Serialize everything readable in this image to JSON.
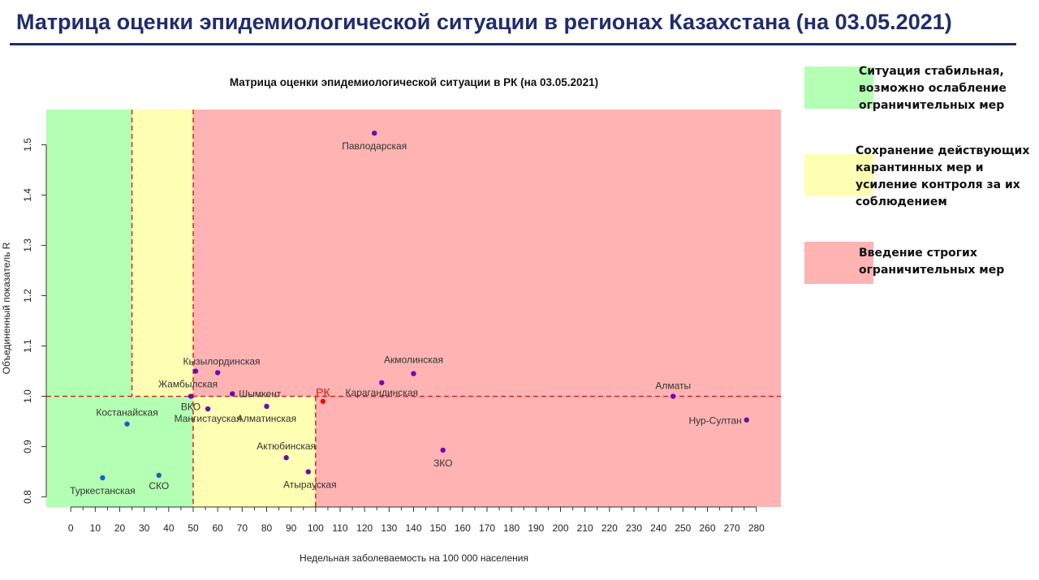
{
  "page": {
    "title": "Матрица оценки эпидемиологической ситуации в регионах Казахстана (на 03.05.2021)"
  },
  "legend": [
    {
      "label": "Ситуация стабильная, возможно ослабление ограничительных мер",
      "color": "#b3ffb3"
    },
    {
      "label": "Сохранение действующих карантинных мер и усиление контроля за их соблюдением",
      "color": "#ffffb3"
    },
    {
      "label": "Введение строгих ограничительных мер",
      "color": "#ffb3b3"
    }
  ],
  "chart_data": {
    "type": "scatter",
    "title": "Матрица оценки эпидемиологической ситуации в РК (на 03.05.2021)",
    "xlabel": "Недельная заболеваемость на 100 000 населения",
    "ylabel": "Объединенный показатель R",
    "xlim": [
      -10,
      290
    ],
    "ylim": [
      0.78,
      1.57
    ],
    "x_ticks": [
      0,
      10,
      20,
      30,
      40,
      50,
      60,
      70,
      80,
      90,
      100,
      110,
      120,
      130,
      140,
      150,
      160,
      170,
      180,
      190,
      200,
      210,
      220,
      230,
      240,
      250,
      260,
      270,
      280
    ],
    "y_ticks": [
      0.8,
      0.9,
      1.0,
      1.1,
      1.2,
      1.3,
      1.4,
      1.5
    ],
    "zones": [
      {
        "name": "green",
        "x": [
          -10,
          25
        ],
        "y": [
          1.0,
          1.57
        ],
        "color": "#b3ffb3"
      },
      {
        "name": "green",
        "x": [
          -10,
          50
        ],
        "y": [
          0.78,
          1.0
        ],
        "color": "#b3ffb3"
      },
      {
        "name": "yellow",
        "x": [
          25,
          50
        ],
        "y": [
          1.0,
          1.57
        ],
        "color": "#ffffb3"
      },
      {
        "name": "yellow",
        "x": [
          50,
          100
        ],
        "y": [
          0.78,
          1.0
        ],
        "color": "#ffffb3"
      },
      {
        "name": "red",
        "x": [
          50,
          290
        ],
        "y": [
          1.0,
          1.57
        ],
        "color": "#ffb3b3"
      },
      {
        "name": "red",
        "x": [
          100,
          290
        ],
        "y": [
          0.78,
          1.0
        ],
        "color": "#ffb3b3"
      }
    ],
    "threshold_lines": [
      {
        "axis": "x",
        "value": 25,
        "y": [
          1.0,
          1.57
        ]
      },
      {
        "axis": "x",
        "value": 50,
        "y": [
          0.78,
          1.57
        ]
      },
      {
        "axis": "x",
        "value": 100,
        "y": [
          0.78,
          1.0
        ]
      },
      {
        "axis": "y",
        "value": 1.0,
        "x": [
          -10,
          290
        ]
      }
    ],
    "points": [
      {
        "label": "Павлодарская",
        "x": 124,
        "y": 1.523,
        "color": "#6a0dad"
      },
      {
        "label": "Кызылординская",
        "x": 51,
        "y": 1.05,
        "color": "#6a0dad"
      },
      {
        "label": "Жамбылская",
        "x": 60,
        "y": 1.047,
        "color": "#6a0dad"
      },
      {
        "label": "Шымкент",
        "x": 66,
        "y": 1.005,
        "color": "#6a0dad"
      },
      {
        "label": "ВКО",
        "x": 49,
        "y": 1.0,
        "color": "#6a0dad"
      },
      {
        "label": "Мангистауская",
        "x": 56,
        "y": 0.975,
        "color": "#6a0dad"
      },
      {
        "label": "Алматинская",
        "x": 80,
        "y": 0.98,
        "color": "#6a0dad"
      },
      {
        "label": "Акмолинская",
        "x": 140,
        "y": 1.045,
        "color": "#6a0dad"
      },
      {
        "label": "Карагандинская",
        "x": 127,
        "y": 1.027,
        "color": "#6a0dad"
      },
      {
        "label": "РК",
        "x": 103,
        "y": 0.99,
        "color": "#e01010"
      },
      {
        "label": "Алматы",
        "x": 246,
        "y": 1.0,
        "color": "#6a0dad"
      },
      {
        "label": "Нур-Султан",
        "x": 276,
        "y": 0.953,
        "color": "#6a0dad"
      },
      {
        "label": "Костанайская",
        "x": 23,
        "y": 0.945,
        "color": "#1a5fc8"
      },
      {
        "label": "Актюбинская",
        "x": 88,
        "y": 0.878,
        "color": "#6a0dad"
      },
      {
        "label": "ЗКО",
        "x": 152,
        "y": 0.893,
        "color": "#6a0dad"
      },
      {
        "label": "Атырауская",
        "x": 97,
        "y": 0.85,
        "color": "#6a0dad"
      },
      {
        "label": "Туркестанская",
        "x": 13,
        "y": 0.838,
        "color": "#1a5fc8"
      },
      {
        "label": "СКО",
        "x": 36,
        "y": 0.843,
        "color": "#1a5fc8"
      }
    ]
  }
}
